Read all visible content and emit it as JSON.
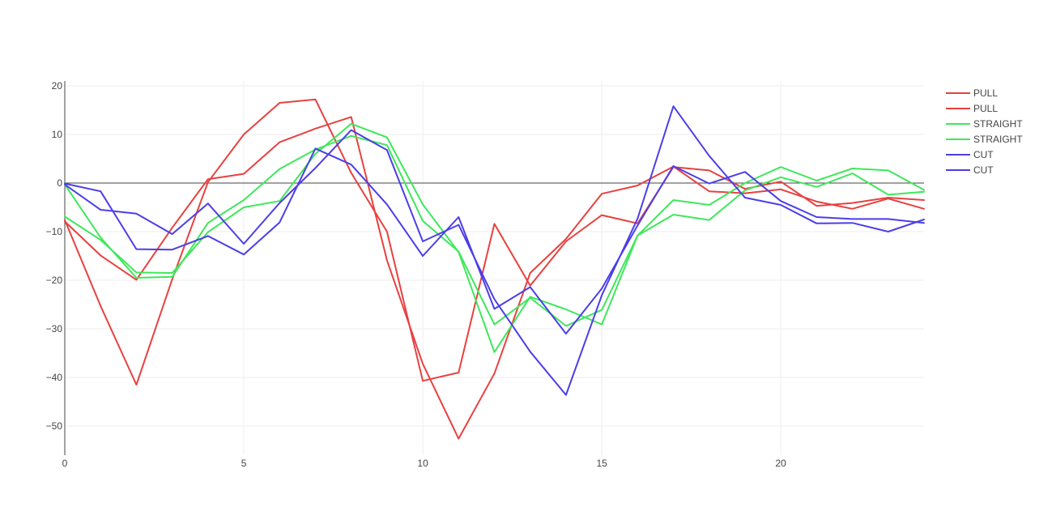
{
  "chart_data": {
    "type": "line",
    "title": "",
    "xlabel": "",
    "ylabel": "",
    "xlim": [
      0,
      24
    ],
    "ylim": [
      -56,
      21
    ],
    "xticks": [
      0,
      5,
      10,
      15,
      20
    ],
    "yticks": [
      20,
      10,
      0,
      -10,
      -20,
      -30,
      -40,
      -50
    ],
    "grid": true,
    "zero_line": true,
    "legend_position": "top-right",
    "x": [
      0,
      1,
      2,
      3,
      4,
      5,
      6,
      7,
      8,
      9,
      10,
      11,
      12,
      13,
      14,
      15,
      16,
      17,
      18,
      19,
      20,
      21,
      22,
      23,
      24
    ],
    "series": [
      {
        "name": "PULL",
        "color": "#e8413f",
        "values": [
          -7.6,
          -25.3,
          -41.5,
          -19.8,
          0.2,
          10,
          16.5,
          17.2,
          2.1,
          -10,
          -40.7,
          -39,
          -8.4,
          -21.1,
          -12,
          -6.6,
          -8.3,
          3.3,
          2.6,
          -1.2,
          0.3,
          -4.7,
          -4.1,
          -3,
          -3.5
        ]
      },
      {
        "name": "PULL",
        "color": "#e8413f",
        "values": [
          -7.9,
          -14.9,
          -19.9,
          -9.2,
          0.8,
          1.9,
          8.4,
          11.2,
          13.6,
          -15.9,
          -37.2,
          -52.6,
          -39.2,
          -18.5,
          -11.5,
          -2.2,
          -0.5,
          3.4,
          -1.7,
          -2.1,
          -1.3,
          -3.8,
          -5.3,
          -3.2,
          -5.3
        ]
      },
      {
        "name": "STRAIGHT",
        "color": "#3ee85a",
        "values": [
          -6.9,
          -11.7,
          -18.4,
          -18.5,
          -10.1,
          -5,
          -3.7,
          6,
          12.2,
          9.4,
          -4.4,
          -14.2,
          -34.8,
          -23.4,
          -26,
          -29.1,
          -10.8,
          -3.5,
          -4.5,
          0,
          3.3,
          0.5,
          3,
          2.6,
          -1.4
        ]
      },
      {
        "name": "STRAIGHT",
        "color": "#3ee85a",
        "values": [
          -0.3,
          -11.2,
          -19.5,
          -19.3,
          -8.2,
          -3.5,
          2.9,
          6.9,
          9.7,
          7.8,
          -7.8,
          -14.1,
          -29.1,
          -23.6,
          -29.4,
          -26.1,
          -10.8,
          -6.5,
          -7.6,
          -1.5,
          1.2,
          -0.8,
          2,
          -2.4,
          -1.8
        ]
      },
      {
        "name": "CUT",
        "color": "#4c3ee8",
        "values": [
          -0.1,
          -1.7,
          -13.6,
          -13.7,
          -10.9,
          -14.7,
          -8.1,
          7.1,
          3.8,
          -4.4,
          -15,
          -7,
          -25.9,
          -21.4,
          -31,
          -21.7,
          -8.7,
          3.5,
          -0.1,
          2.3,
          -3.7,
          -7,
          -7.4,
          -7.4,
          -8.2
        ]
      },
      {
        "name": "CUT",
        "color": "#4c3ee8",
        "values": [
          -0.3,
          -5.5,
          -6.3,
          -10.5,
          -4.2,
          -12.5,
          -4.1,
          3.1,
          10.9,
          6.8,
          -12,
          -8.6,
          -23.9,
          -34.7,
          -43.6,
          -23.1,
          -7.3,
          15.8,
          5.6,
          -3,
          -4.5,
          -8.3,
          -8.2,
          -10,
          -7.5
        ]
      }
    ]
  }
}
